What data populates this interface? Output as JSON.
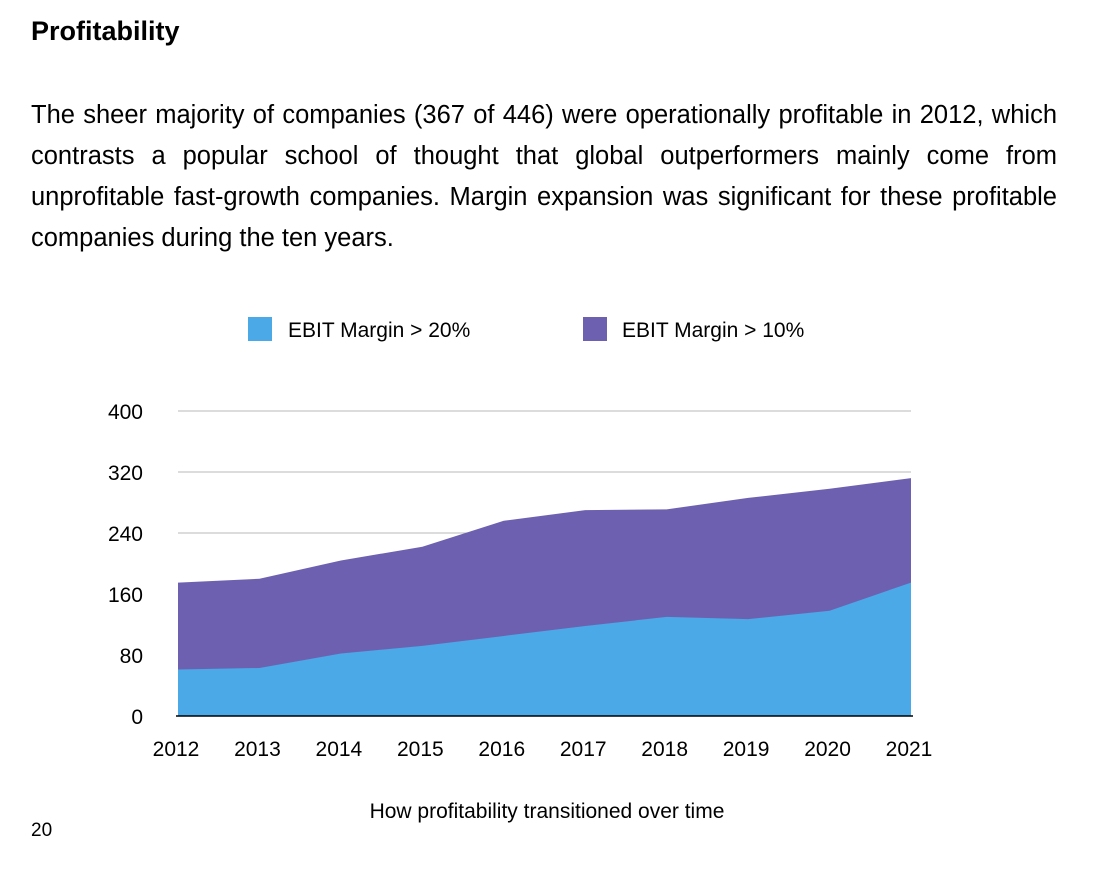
{
  "document": {
    "heading": "Profitability",
    "paragraph": "The sheer majority of companies (367 of 446) were operationally profitable in 2012, which contrasts a popular school of thought that global outperformers mainly come from unprofitable fast-growth companies. Margin expansion was significant for these profitable companies during the ten years.",
    "page_number": "20"
  },
  "chart_data": {
    "type": "area",
    "title": "",
    "caption": "How profitability transitioned over time",
    "xlabel": "",
    "ylabel": "",
    "x": [
      "2012",
      "2013",
      "2014",
      "2015",
      "2016",
      "2017",
      "2018",
      "2019",
      "2020",
      "2021"
    ],
    "ylim": [
      0,
      400
    ],
    "yticks": [
      0,
      80,
      160,
      240,
      320,
      400
    ],
    "grid": true,
    "legend": "top-center",
    "stacked": false,
    "series": [
      {
        "name": "EBIT Margin > 10%",
        "color": "#6e60b0",
        "values": [
          175,
          180,
          204,
          222,
          256,
          270,
          271,
          286,
          298,
          312
        ]
      },
      {
        "name": "EBIT Margin > 20%",
        "color": "#4aa9e6",
        "values": [
          61,
          63,
          82,
          92,
          105,
          118,
          130,
          127,
          138,
          175
        ]
      }
    ],
    "legend_order": [
      "EBIT Margin > 20%",
      "EBIT Margin > 10%"
    ]
  }
}
